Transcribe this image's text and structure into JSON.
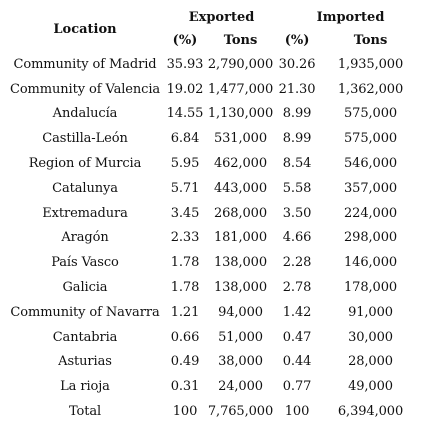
{
  "headers": {
    "location": "Location",
    "exported": "Exported",
    "imported": "Imported",
    "pct": "(%)",
    "tons": "Tons"
  },
  "rows": [
    {
      "location": "Community of Madrid",
      "exp_pct": "35.93",
      "exp_tons": "2,790,000",
      "imp_pct": "30.26",
      "imp_tons": "1,935,000"
    },
    {
      "location": "Community of Valencia",
      "exp_pct": "19.02",
      "exp_tons": "1,477,000",
      "imp_pct": "21.30",
      "imp_tons": "1,362,000"
    },
    {
      "location": "Andalucía",
      "exp_pct": "14.55",
      "exp_tons": "1,130,000",
      "imp_pct": "8.99",
      "imp_tons": "575,000"
    },
    {
      "location": "Castilla-León",
      "exp_pct": "6.84",
      "exp_tons": "531,000",
      "imp_pct": "8.99",
      "imp_tons": "575,000"
    },
    {
      "location": "Region of Murcia",
      "exp_pct": "5.95",
      "exp_tons": "462,000",
      "imp_pct": "8.54",
      "imp_tons": "546,000"
    },
    {
      "location": "Catalunya",
      "exp_pct": "5.71",
      "exp_tons": "443,000",
      "imp_pct": "5.58",
      "imp_tons": "357,000"
    },
    {
      "location": "Extremadura",
      "exp_pct": "3.45",
      "exp_tons": "268,000",
      "imp_pct": "3.50",
      "imp_tons": "224,000"
    },
    {
      "location": "Aragón",
      "exp_pct": "2.33",
      "exp_tons": "181,000",
      "imp_pct": "4.66",
      "imp_tons": "298,000"
    },
    {
      "location": "País Vasco",
      "exp_pct": "1.78",
      "exp_tons": "138,000",
      "imp_pct": "2.28",
      "imp_tons": "146,000"
    },
    {
      "location": "Galicia",
      "exp_pct": "1.78",
      "exp_tons": "138,000",
      "imp_pct": "2.78",
      "imp_tons": "178,000"
    },
    {
      "location": "Community of Navarra",
      "exp_pct": "1.21",
      "exp_tons": "94,000",
      "imp_pct": "1.42",
      "imp_tons": "91,000"
    },
    {
      "location": "Cantabria",
      "exp_pct": "0.66",
      "exp_tons": "51,000",
      "imp_pct": "0.47",
      "imp_tons": "30,000"
    },
    {
      "location": "Asturias",
      "exp_pct": "0.49",
      "exp_tons": "38,000",
      "imp_pct": "0.44",
      "imp_tons": "28,000"
    },
    {
      "location": "La rioja",
      "exp_pct": "0.31",
      "exp_tons": "24,000",
      "imp_pct": "0.77",
      "imp_tons": "49,000"
    },
    {
      "location": "Total",
      "exp_pct": "100",
      "exp_tons": "7,765,000",
      "imp_pct": "100",
      "imp_tons": "6,394,000"
    }
  ]
}
